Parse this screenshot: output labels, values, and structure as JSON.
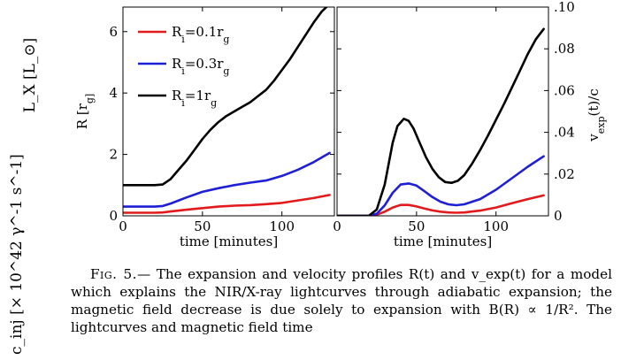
{
  "side_labels": {
    "lx": "L_X [L_⊙]",
    "cinj": "c_inj [× 10^42 γ^-1 s^-1]"
  },
  "figure": {
    "left_ylabel": "R [r_g]",
    "right_ylabel": "v_exp(t)/c",
    "xlabel": "time [minutes]"
  },
  "caption": {
    "fig_label": "Fig. 5.",
    "text": "— The expansion and velocity profiles R(t) and v_exp(t) for a model which explains the NIR/X-ray lightcurves through adiabatic expansion; the magnetic field decrease is due solely to expansion with B(R) ∝ 1/R². The lightcurves and magnetic field time"
  },
  "colors": {
    "red": "#e31a1c",
    "blue": "#1f1fd6",
    "black": "#000000"
  },
  "chart_data": [
    {
      "type": "line",
      "title": "",
      "xlabel": "time [minutes]",
      "ylabel": "R [r_g]",
      "xlim": [
        0,
        133
      ],
      "ylim": [
        0,
        6.8
      ],
      "xticks": [
        0,
        50,
        100
      ],
      "yticks": [
        0,
        2,
        4,
        6
      ],
      "legend_position": "top-left",
      "series": [
        {
          "name": "R_i=0.1r_g",
          "color": "red",
          "x": [
            0,
            10,
            20,
            25,
            30,
            40,
            50,
            60,
            70,
            80,
            90,
            100,
            110,
            120,
            130
          ],
          "y": [
            0.1,
            0.1,
            0.1,
            0.11,
            0.14,
            0.2,
            0.25,
            0.3,
            0.33,
            0.35,
            0.38,
            0.42,
            0.5,
            0.58,
            0.68
          ]
        },
        {
          "name": "R_i=0.3r_g",
          "color": "blue",
          "x": [
            0,
            10,
            20,
            25,
            30,
            40,
            50,
            60,
            70,
            80,
            90,
            100,
            110,
            120,
            130
          ],
          "y": [
            0.3,
            0.3,
            0.3,
            0.32,
            0.4,
            0.6,
            0.78,
            0.9,
            1.0,
            1.08,
            1.15,
            1.3,
            1.5,
            1.75,
            2.05
          ]
        },
        {
          "name": "R_i=1r_g",
          "color": "black",
          "x": [
            0,
            10,
            20,
            25,
            30,
            35,
            40,
            45,
            50,
            55,
            60,
            65,
            70,
            75,
            80,
            85,
            90,
            95,
            100,
            105,
            110,
            115,
            120,
            125,
            128
          ],
          "y": [
            1.0,
            1.0,
            1.0,
            1.02,
            1.2,
            1.5,
            1.8,
            2.15,
            2.5,
            2.8,
            3.05,
            3.25,
            3.4,
            3.55,
            3.7,
            3.9,
            4.1,
            4.4,
            4.75,
            5.1,
            5.5,
            5.9,
            6.3,
            6.65,
            6.8
          ]
        }
      ]
    },
    {
      "type": "line",
      "title": "",
      "xlabel": "time [minutes]",
      "ylabel": "v_exp(t)/c",
      "xlim": [
        0,
        133
      ],
      "ylim": [
        0,
        0.1
      ],
      "xticks": [
        0,
        50,
        100
      ],
      "yticks": [
        0,
        0.02,
        0.04,
        0.06,
        0.08
      ],
      "yaxis_side": "right",
      "series": [
        {
          "name": "R_i=0.1r_g",
          "color": "red",
          "x": [
            0,
            20,
            25,
            30,
            35,
            40,
            45,
            50,
            55,
            60,
            65,
            70,
            75,
            80,
            90,
            100,
            110,
            120,
            130
          ],
          "y": [
            0,
            0,
            0.0005,
            0.002,
            0.004,
            0.0052,
            0.0052,
            0.0045,
            0.0035,
            0.0026,
            0.002,
            0.0016,
            0.0015,
            0.0016,
            0.0025,
            0.004,
            0.006,
            0.008,
            0.0098
          ]
        },
        {
          "name": "R_i=0.3r_g",
          "color": "blue",
          "x": [
            0,
            20,
            25,
            30,
            35,
            40,
            45,
            50,
            55,
            60,
            65,
            70,
            75,
            80,
            90,
            100,
            110,
            120,
            130
          ],
          "y": [
            0,
            0,
            0.001,
            0.005,
            0.011,
            0.015,
            0.0155,
            0.0145,
            0.0118,
            0.009,
            0.0068,
            0.0055,
            0.0051,
            0.0055,
            0.008,
            0.0125,
            0.018,
            0.0235,
            0.0285
          ]
        },
        {
          "name": "R_i=1r_g",
          "color": "black",
          "x": [
            0,
            20,
            25,
            30,
            35,
            38,
            42,
            45,
            48,
            52,
            56,
            60,
            64,
            68,
            72,
            76,
            80,
            85,
            90,
            95,
            100,
            105,
            110,
            115,
            120,
            125,
            130
          ],
          "y": [
            0,
            0,
            0.003,
            0.015,
            0.035,
            0.043,
            0.0465,
            0.0455,
            0.042,
            0.035,
            0.028,
            0.0225,
            0.0185,
            0.0162,
            0.0158,
            0.0168,
            0.0195,
            0.025,
            0.0315,
            0.0385,
            0.046,
            0.0535,
            0.0615,
            0.0695,
            0.0775,
            0.0845,
            0.0895
          ]
        }
      ]
    }
  ]
}
